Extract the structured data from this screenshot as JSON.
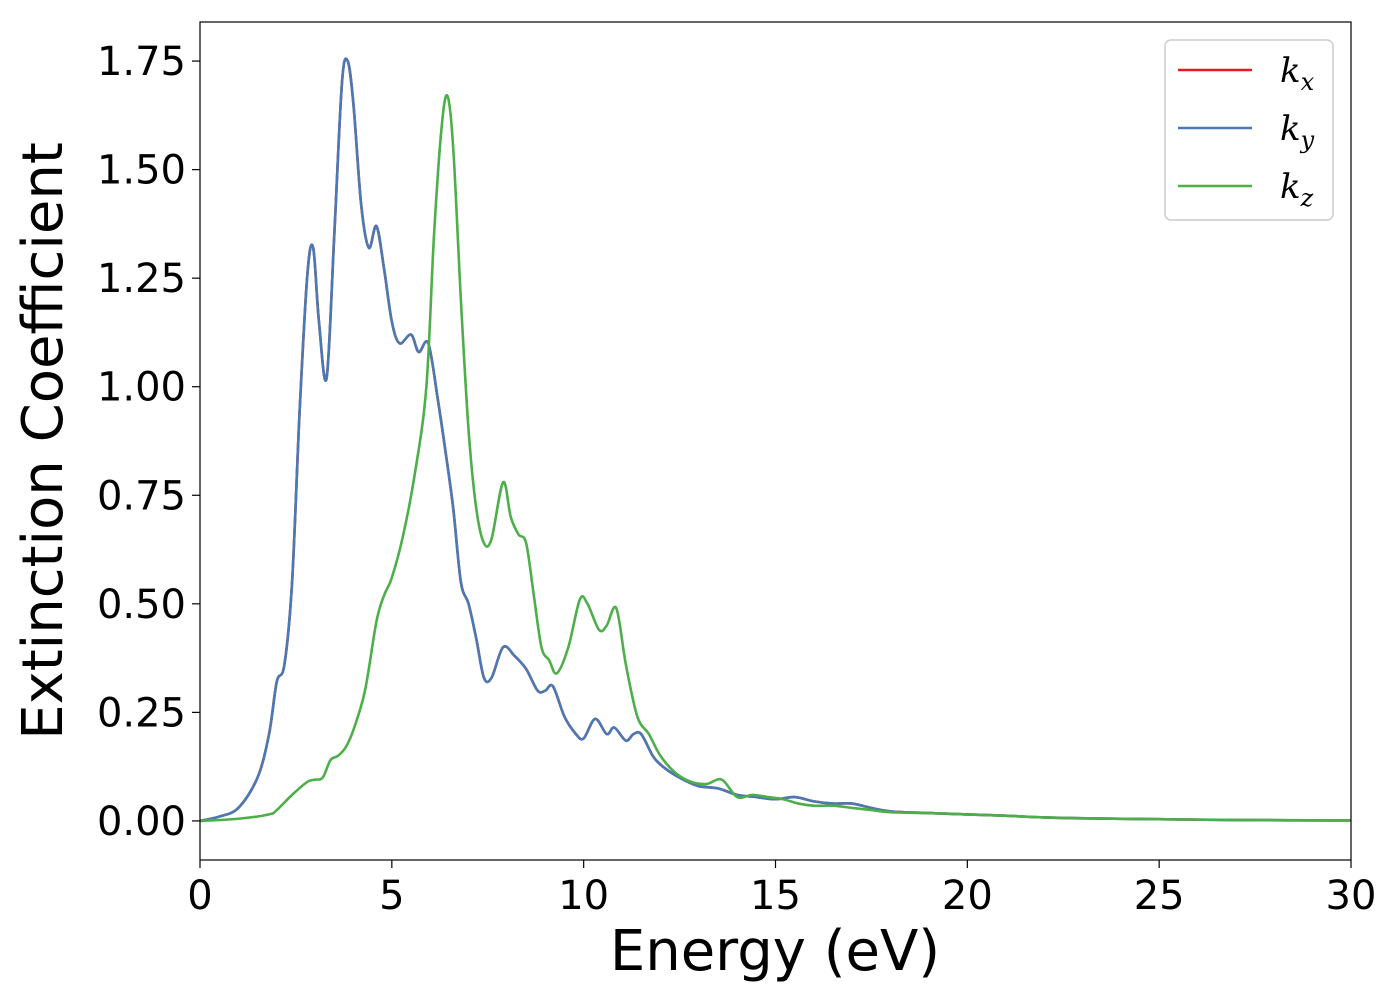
{
  "chart_data": {
    "type": "line",
    "title": "",
    "xlabel": "Energy (eV)",
    "ylabel": "Extinction Coefficient",
    "xlim": [
      0,
      30
    ],
    "ylim": [
      -0.09,
      1.84
    ],
    "xticks": [
      0,
      5,
      10,
      15,
      20,
      25,
      30
    ],
    "xtick_labels": [
      "0",
      "5",
      "10",
      "15",
      "20",
      "25",
      "30"
    ],
    "yticks": [
      0,
      0.25,
      0.5,
      0.75,
      1.0,
      1.25,
      1.5,
      1.75
    ],
    "ytick_labels": [
      "0.00",
      "0.25",
      "0.50",
      "0.75",
      "1.00",
      "1.25",
      "1.50",
      "1.75"
    ],
    "grid": false,
    "legend_position": "top-right",
    "series": [
      {
        "name": "k_x",
        "legend_base": "k",
        "legend_sub": "x",
        "color": "#e41a1c",
        "x": [
          0,
          0.5,
          1.0,
          1.5,
          1.8,
          2.0,
          2.2,
          2.4,
          2.6,
          2.8,
          2.95,
          3.1,
          3.3,
          3.5,
          3.7,
          3.85,
          4.0,
          4.2,
          4.4,
          4.6,
          4.8,
          5.0,
          5.2,
          5.5,
          5.7,
          5.95,
          6.2,
          6.4,
          6.6,
          6.8,
          7.0,
          7.2,
          7.4,
          7.6,
          7.9,
          8.2,
          8.5,
          8.8,
          9.0,
          9.2,
          9.5,
          9.8,
          10.0,
          10.3,
          10.6,
          10.8,
          11.1,
          11.3,
          11.5,
          11.8,
          12.0,
          12.3,
          12.6,
          13.0,
          13.5,
          14.0,
          14.5,
          15.0,
          15.5,
          16.0,
          16.5,
          17.0,
          17.5,
          18.0,
          19.0,
          20.0,
          21.0,
          22.0,
          23.0,
          25.0,
          27.0,
          30.0
        ],
        "y": [
          0.0,
          0.01,
          0.03,
          0.1,
          0.2,
          0.32,
          0.36,
          0.55,
          0.95,
          1.26,
          1.32,
          1.15,
          1.02,
          1.35,
          1.7,
          1.75,
          1.65,
          1.42,
          1.32,
          1.37,
          1.27,
          1.15,
          1.1,
          1.12,
          1.08,
          1.1,
          0.97,
          0.85,
          0.72,
          0.55,
          0.5,
          0.42,
          0.33,
          0.33,
          0.4,
          0.38,
          0.35,
          0.3,
          0.3,
          0.31,
          0.24,
          0.2,
          0.19,
          0.235,
          0.2,
          0.215,
          0.185,
          0.2,
          0.2,
          0.15,
          0.13,
          0.11,
          0.095,
          0.08,
          0.075,
          0.06,
          0.055,
          0.05,
          0.055,
          0.045,
          0.04,
          0.04,
          0.03,
          0.022,
          0.018,
          0.015,
          0.012,
          0.008,
          0.006,
          0.004,
          0.002,
          0.001
        ]
      },
      {
        "name": "k_y",
        "legend_base": "k",
        "legend_sub": "y",
        "color": "#4a7ab5",
        "x": [
          0,
          0.5,
          1.0,
          1.5,
          1.8,
          2.0,
          2.2,
          2.4,
          2.6,
          2.8,
          2.95,
          3.1,
          3.3,
          3.5,
          3.7,
          3.85,
          4.0,
          4.2,
          4.4,
          4.6,
          4.8,
          5.0,
          5.2,
          5.5,
          5.7,
          5.95,
          6.2,
          6.4,
          6.6,
          6.8,
          7.0,
          7.2,
          7.4,
          7.6,
          7.9,
          8.2,
          8.5,
          8.8,
          9.0,
          9.2,
          9.5,
          9.8,
          10.0,
          10.3,
          10.6,
          10.8,
          11.1,
          11.3,
          11.5,
          11.8,
          12.0,
          12.3,
          12.6,
          13.0,
          13.5,
          14.0,
          14.5,
          15.0,
          15.5,
          16.0,
          16.5,
          17.0,
          17.5,
          18.0,
          19.0,
          20.0,
          21.0,
          22.0,
          23.0,
          25.0,
          27.0,
          30.0
        ],
        "y": [
          0.0,
          0.01,
          0.03,
          0.1,
          0.2,
          0.32,
          0.36,
          0.55,
          0.95,
          1.26,
          1.32,
          1.15,
          1.02,
          1.35,
          1.7,
          1.75,
          1.65,
          1.42,
          1.32,
          1.37,
          1.27,
          1.15,
          1.1,
          1.12,
          1.08,
          1.1,
          0.97,
          0.85,
          0.72,
          0.55,
          0.5,
          0.42,
          0.33,
          0.33,
          0.4,
          0.38,
          0.35,
          0.3,
          0.3,
          0.31,
          0.24,
          0.2,
          0.19,
          0.235,
          0.2,
          0.215,
          0.185,
          0.2,
          0.2,
          0.15,
          0.13,
          0.11,
          0.095,
          0.08,
          0.075,
          0.06,
          0.055,
          0.05,
          0.055,
          0.045,
          0.04,
          0.04,
          0.03,
          0.022,
          0.018,
          0.015,
          0.012,
          0.008,
          0.006,
          0.004,
          0.002,
          0.001
        ]
      },
      {
        "name": "k_z",
        "legend_base": "k",
        "legend_sub": "z",
        "color": "#4daf4a",
        "x": [
          0,
          1.0,
          1.8,
          2.0,
          2.4,
          2.8,
          3.0,
          3.2,
          3.4,
          3.6,
          3.8,
          4.0,
          4.3,
          4.6,
          4.8,
          5.0,
          5.3,
          5.6,
          5.9,
          6.1,
          6.3,
          6.45,
          6.6,
          6.8,
          7.0,
          7.2,
          7.4,
          7.6,
          7.9,
          8.1,
          8.3,
          8.5,
          8.7,
          8.9,
          9.1,
          9.3,
          9.6,
          9.9,
          10.1,
          10.4,
          10.6,
          10.85,
          11.1,
          11.4,
          11.7,
          12.0,
          12.4,
          12.8,
          13.2,
          13.6,
          14.0,
          14.4,
          14.8,
          15.2,
          15.6,
          16.0,
          16.5,
          17.0,
          17.5,
          18.0,
          19.0,
          20.0,
          21.0,
          22.0,
          24.0,
          26.0,
          30.0
        ],
        "y": [
          0.0,
          0.005,
          0.015,
          0.025,
          0.06,
          0.09,
          0.095,
          0.1,
          0.14,
          0.15,
          0.17,
          0.21,
          0.3,
          0.46,
          0.52,
          0.56,
          0.66,
          0.8,
          1.0,
          1.35,
          1.6,
          1.67,
          1.55,
          1.2,
          0.9,
          0.72,
          0.64,
          0.65,
          0.78,
          0.7,
          0.66,
          0.64,
          0.52,
          0.4,
          0.37,
          0.34,
          0.4,
          0.51,
          0.5,
          0.44,
          0.45,
          0.49,
          0.36,
          0.24,
          0.2,
          0.15,
          0.11,
          0.09,
          0.085,
          0.095,
          0.055,
          0.06,
          0.055,
          0.05,
          0.04,
          0.035,
          0.035,
          0.03,
          0.025,
          0.02,
          0.018,
          0.015,
          0.012,
          0.008,
          0.005,
          0.003,
          0.001
        ]
      }
    ]
  }
}
